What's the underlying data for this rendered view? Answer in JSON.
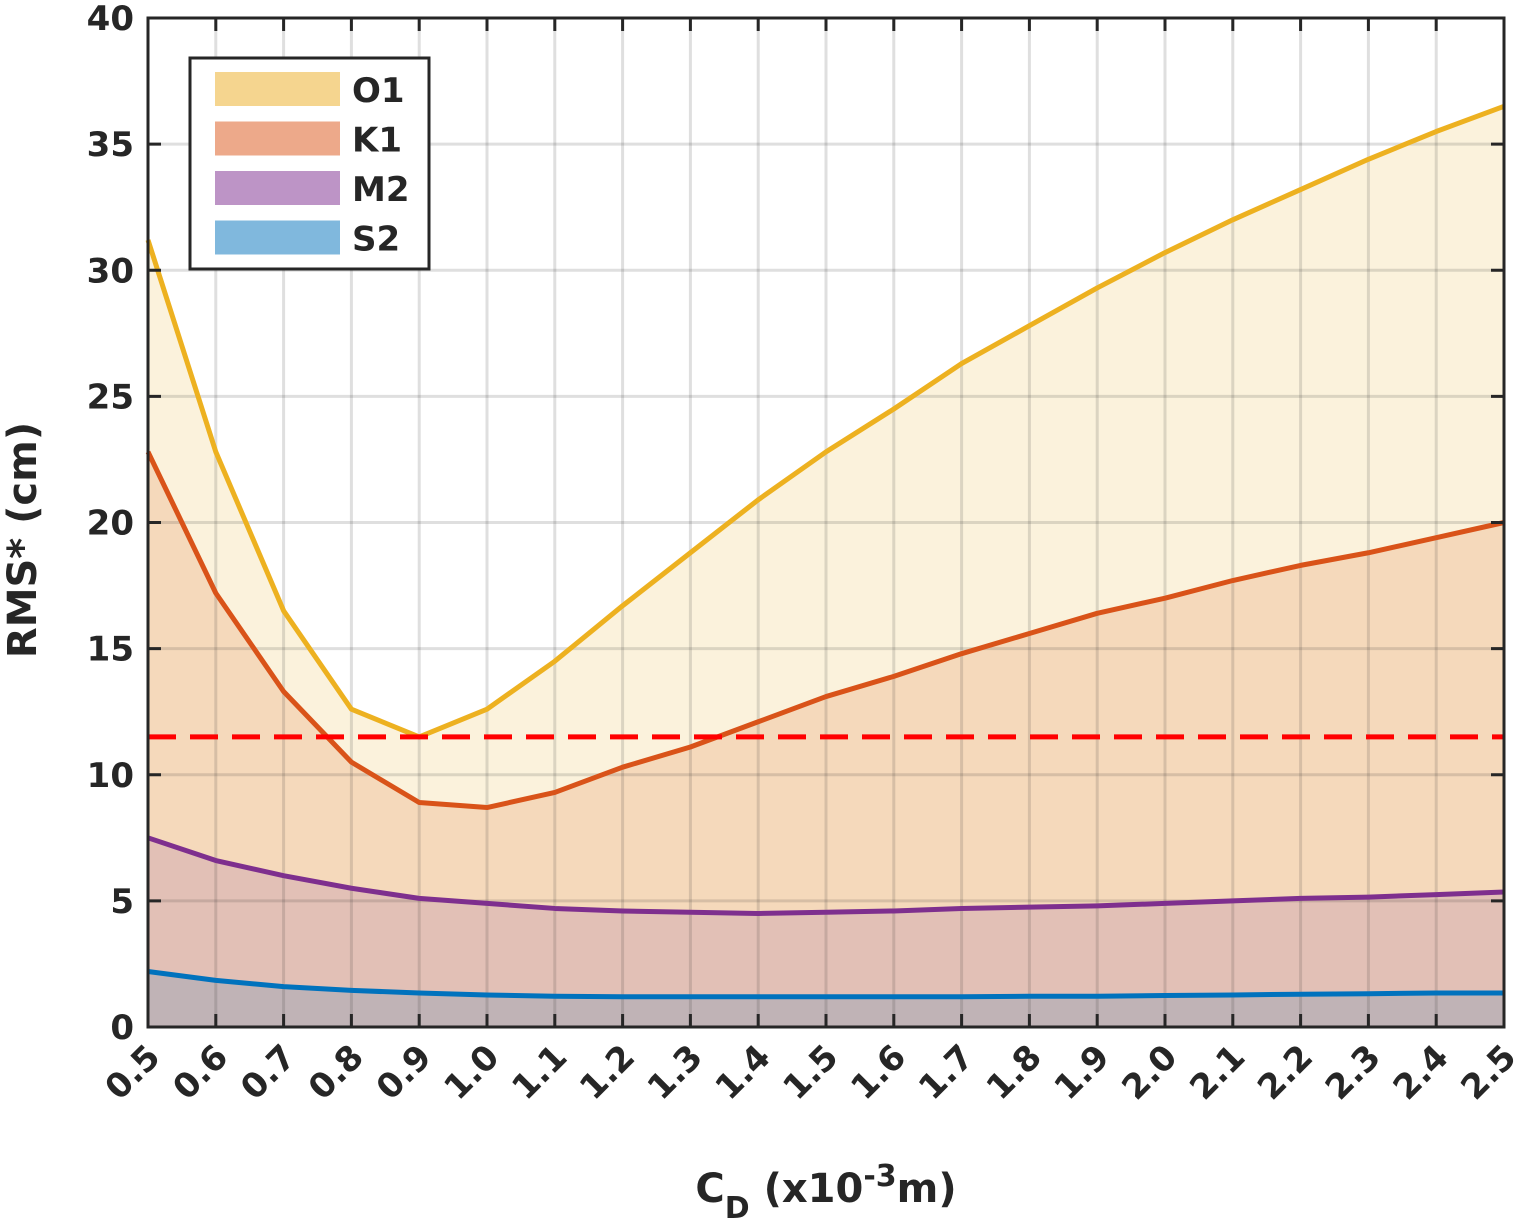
{
  "chart_data": {
    "type": "area",
    "title": "",
    "xlabel": "C",
    "xlabel_sub": "D",
    "xlabel_rest": " (x10",
    "xlabel_sup": "-3",
    "xlabel_end": "m)",
    "ylabel": "RMS* (cm)",
    "xlim": [
      0.5,
      2.5
    ],
    "ylim": [
      0,
      40
    ],
    "grid": true,
    "legend_position": "top-left",
    "x": [
      0.5,
      0.6,
      0.7,
      0.8,
      0.9,
      1.0,
      1.1,
      1.2,
      1.3,
      1.4,
      1.5,
      1.6,
      1.7,
      1.8,
      1.9,
      2.0,
      2.1,
      2.2,
      2.3,
      2.4,
      2.5
    ],
    "x_tick_labels": [
      "0.5",
      "0.6",
      "0.7",
      "0.8",
      "0.9",
      "1.0",
      "1.1",
      "1.2",
      "1.3",
      "1.4",
      "1.5",
      "1.6",
      "1.7",
      "1.8",
      "1.9",
      "2.0",
      "2.1",
      "2.2",
      "2.3",
      "2.4",
      "2.5"
    ],
    "y_ticks": [
      0,
      5,
      10,
      15,
      20,
      25,
      30,
      35,
      40
    ],
    "y_tick_labels": [
      "0",
      "5",
      "10",
      "15",
      "20",
      "25",
      "30",
      "35",
      "40"
    ],
    "series": [
      {
        "name": "O1",
        "line_color": "#EDB120",
        "fill_color": "#FBF2DC",
        "legend_color": "#F5D58F",
        "values": [
          31.2,
          22.8,
          16.5,
          12.6,
          11.5,
          12.6,
          14.5,
          16.7,
          18.8,
          20.9,
          22.8,
          24.5,
          26.3,
          27.8,
          29.3,
          30.7,
          32.0,
          33.2,
          34.4,
          35.5,
          36.5
        ]
      },
      {
        "name": "K1",
        "line_color": "#D95319",
        "fill_color": "#F5D9BB",
        "legend_color": "#EDA98A",
        "values": [
          22.8,
          17.2,
          13.3,
          10.5,
          8.9,
          8.7,
          9.3,
          10.3,
          11.1,
          12.1,
          13.1,
          13.9,
          14.8,
          15.6,
          16.4,
          17.0,
          17.7,
          18.3,
          18.8,
          19.4,
          20.0
        ]
      },
      {
        "name": "M2",
        "line_color": "#7E2F8E",
        "fill_color": "#E2C0B6",
        "legend_color": "#BD94C6",
        "values": [
          7.5,
          6.6,
          6.0,
          5.5,
          5.1,
          4.9,
          4.7,
          4.6,
          4.55,
          4.5,
          4.55,
          4.6,
          4.7,
          4.75,
          4.8,
          4.9,
          5.0,
          5.1,
          5.15,
          5.25,
          5.35
        ]
      },
      {
        "name": "S2",
        "line_color": "#0072BD",
        "fill_color": "#C0B3B6",
        "legend_color": "#80B8DD",
        "values": [
          2.2,
          1.85,
          1.6,
          1.45,
          1.35,
          1.27,
          1.22,
          1.2,
          1.2,
          1.2,
          1.2,
          1.2,
          1.2,
          1.22,
          1.22,
          1.25,
          1.27,
          1.3,
          1.32,
          1.35,
          1.35
        ]
      }
    ],
    "reference_line": {
      "y": 11.5,
      "color": "#FF0000",
      "style": "dashed"
    }
  }
}
